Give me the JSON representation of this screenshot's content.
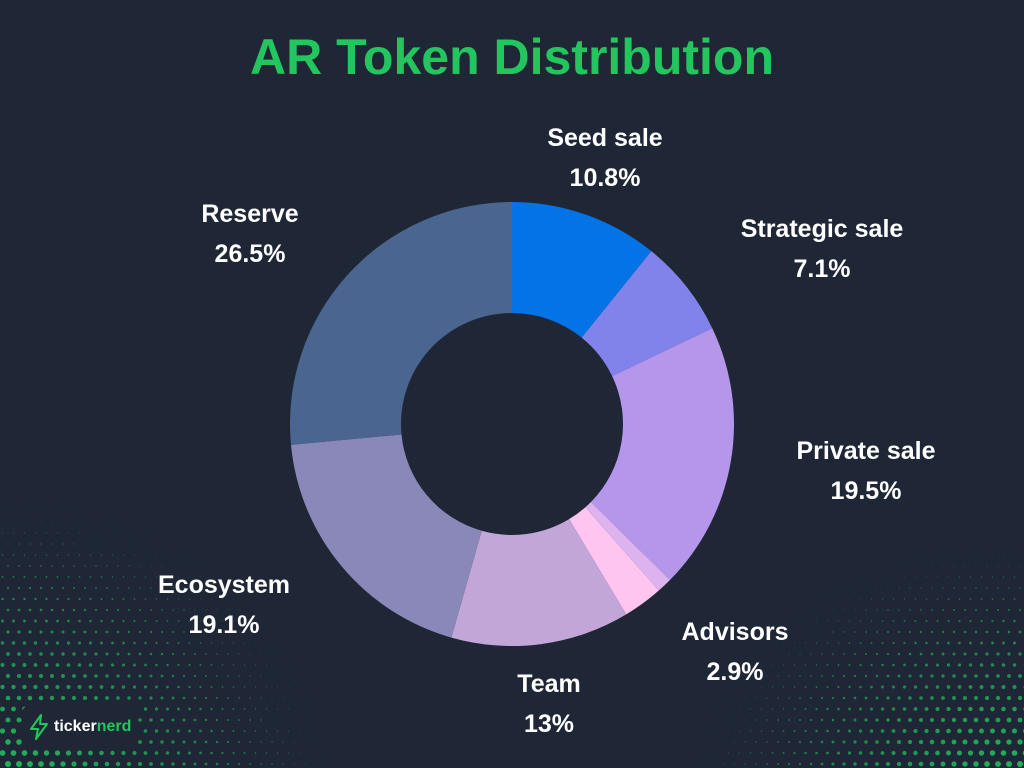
{
  "chart_data": {
    "type": "pie",
    "variant": "donut",
    "title": "AR Token Distribution",
    "slices": [
      {
        "label": "Seed sale",
        "value": 10.8,
        "display": "10.8%",
        "color": "#0373e6"
      },
      {
        "label": "Strategic sale",
        "value": 7.1,
        "display": "7.1%",
        "color": "#8283ea"
      },
      {
        "label": "Private sale",
        "value": 19.5,
        "display": "19.5%",
        "color": "#b596ea"
      },
      {
        "label": "",
        "value": 1.1,
        "display": "",
        "color": "#ddb3ef"
      },
      {
        "label": "Advisors",
        "value": 2.9,
        "display": "2.9%",
        "color": "#fec5f0"
      },
      {
        "label": "Team",
        "value": 13,
        "display": "13%",
        "color": "#c3a6d8"
      },
      {
        "label": "Ecosystem",
        "value": 19.1,
        "display": "19.1%",
        "color": "#8a87b9"
      },
      {
        "label": "Reserve",
        "value": 26.5,
        "display": "26.5%",
        "color": "#4a6590"
      }
    ]
  },
  "brand": {
    "name_part1": "ticker",
    "name_part2": "nerd",
    "icon": "lightning-bolt-icon",
    "accent_color": "#22c55e"
  },
  "colors": {
    "background": "#1f2736",
    "title": "#22c55e",
    "label": "#ffffff",
    "dots": "#22c55e"
  }
}
